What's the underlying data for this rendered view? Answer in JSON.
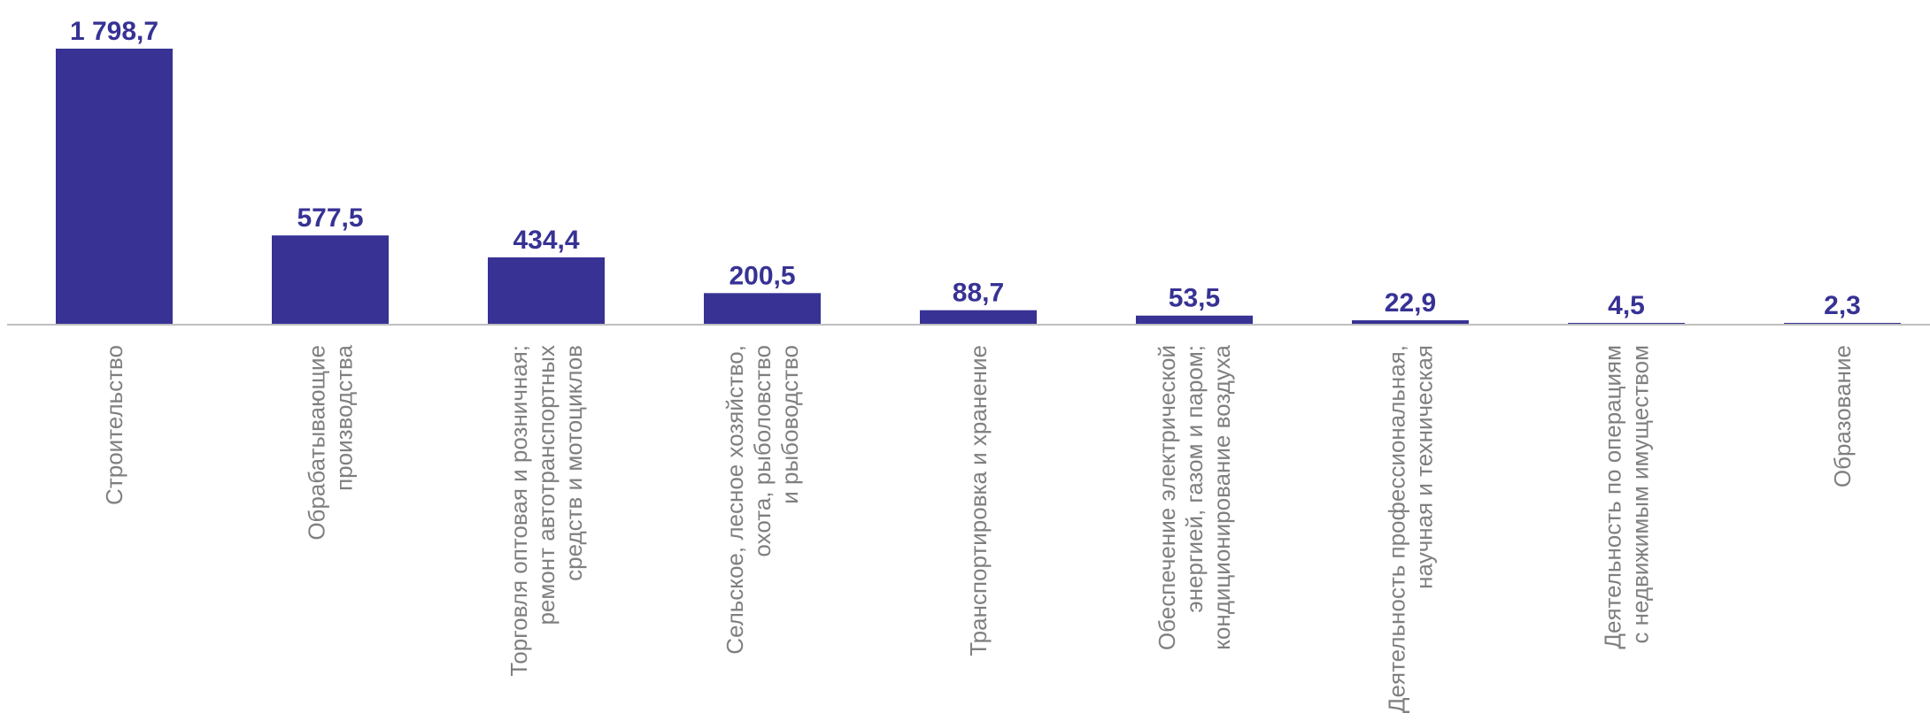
{
  "chart_data": {
    "type": "bar",
    "categories": [
      [
        "Строительство"
      ],
      [
        "Обрабатывающие",
        "производства"
      ],
      [
        "Торговля оптовая и розничная;",
        "ремонт автотранспортных",
        "средств и мотоциклов"
      ],
      [
        "Сельское, лесное хозяйство,",
        "охота, рыболовство",
        "и рыбоводство"
      ],
      [
        "Транспортировка и хранение"
      ],
      [
        "Обеспечение электрической",
        "энергией, газом и паром;",
        "кондиционирование воздуха"
      ],
      [
        "Деятельность профессиональная,",
        "научная и техническая"
      ],
      [
        "Деятельность по операциям",
        "с недвижимым имуществом"
      ],
      [
        "Образование"
      ]
    ],
    "values": [
      1798.7,
      577.5,
      434.4,
      200.5,
      88.7,
      53.5,
      22.9,
      4.5,
      2.3
    ],
    "data_labels": [
      "1 798,7",
      "577,5",
      "434,4",
      "200,5",
      "88,7",
      "53,5",
      "22,9",
      "4,5",
      "2,3"
    ],
    "ylim": [
      0,
      1798.7
    ],
    "grid": false,
    "legend": "none",
    "bar_color": "#373294",
    "label_color": "#373294",
    "axis_color": "#bfbfbf",
    "category_label_color": "#7f7f7f"
  }
}
